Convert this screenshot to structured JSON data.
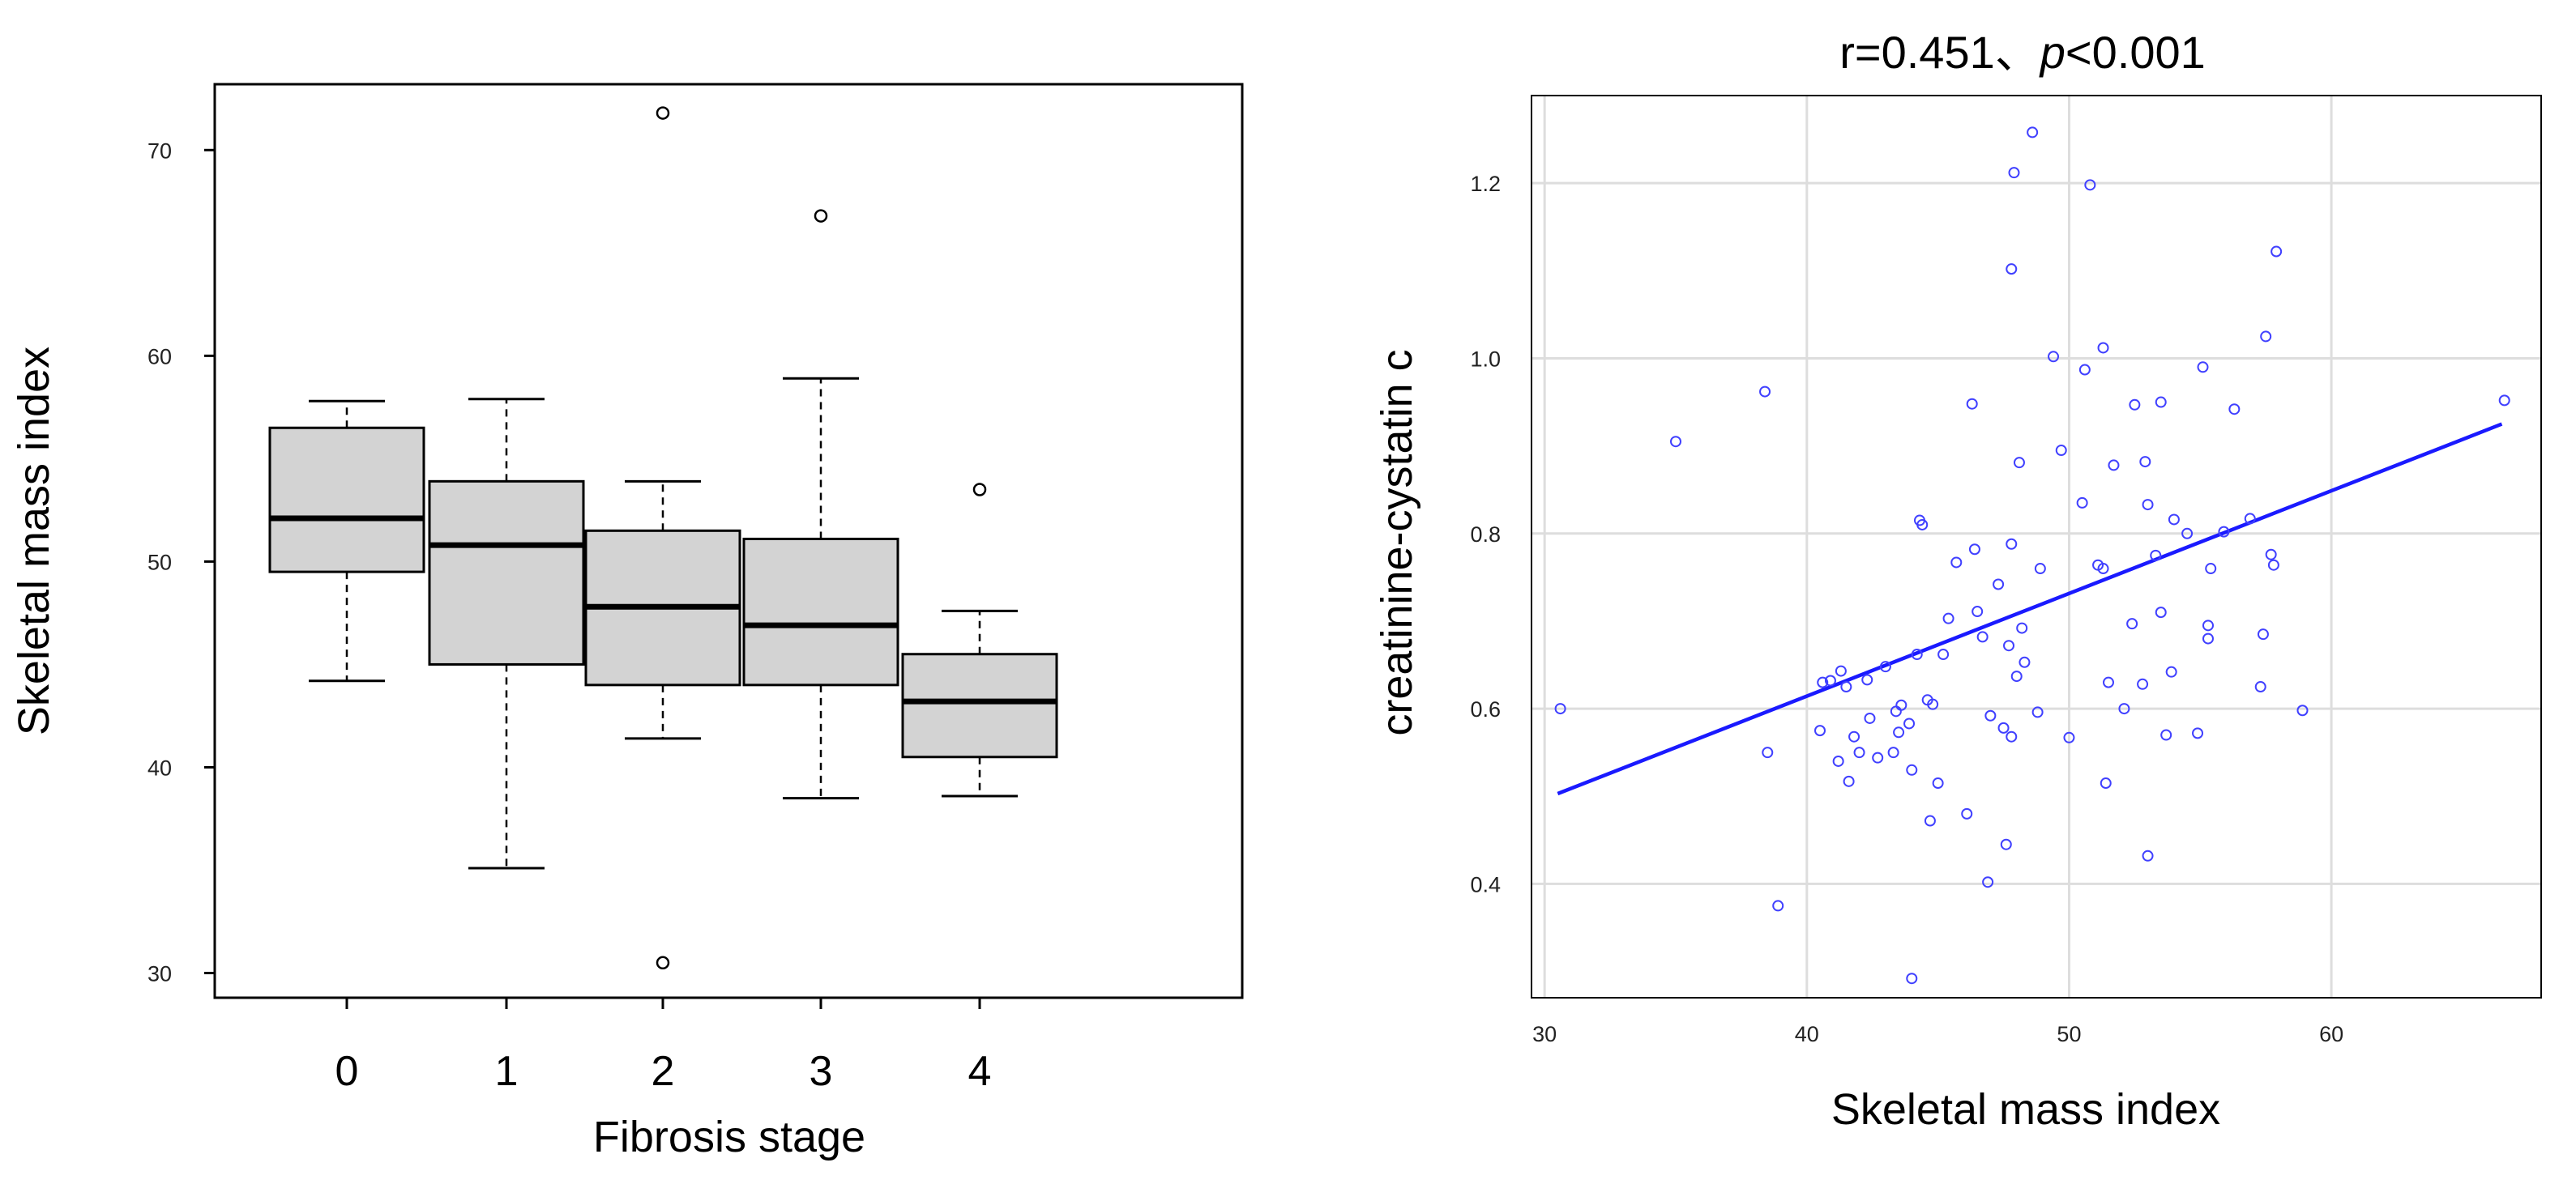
{
  "chart_data": [
    {
      "type": "box",
      "title": "",
      "xlabel": "Fibrosis stage",
      "ylabel": "Skeletal mass index",
      "categories": [
        "0",
        "1",
        "2",
        "3",
        "4"
      ],
      "ylim": [
        28.8,
        73.2
      ],
      "yticks": [
        30,
        40,
        50,
        60,
        70
      ],
      "grid": false,
      "fill_color": "#d3d3d3",
      "boxes": [
        {
          "category": "0",
          "whisker_low": 44.2,
          "q1": 49.5,
          "median": 52.1,
          "q3": 56.5,
          "whisker_high": 57.8,
          "outliers": []
        },
        {
          "category": "1",
          "whisker_low": 35.1,
          "q1": 45.0,
          "median": 50.8,
          "q3": 53.9,
          "whisker_high": 57.9,
          "outliers": []
        },
        {
          "category": "2",
          "whisker_low": 41.4,
          "q1": 44.0,
          "median": 47.8,
          "q3": 51.5,
          "whisker_high": 53.9,
          "outliers": [
            71.8,
            30.5
          ]
        },
        {
          "category": "3",
          "whisker_low": 38.5,
          "q1": 44.0,
          "median": 46.9,
          "q3": 51.1,
          "whisker_high": 58.9,
          "outliers": [
            66.8
          ]
        },
        {
          "category": "4",
          "whisker_low": 38.6,
          "q1": 40.5,
          "median": 43.2,
          "q3": 45.5,
          "whisker_high": 47.6,
          "outliers": [
            53.5
          ]
        }
      ]
    },
    {
      "type": "scatter",
      "title_prefix": "r=0.451、",
      "title_italic": "p",
      "title_suffix": "<0.001",
      "xlabel": "Skeletal mass index",
      "ylabel": "creatinine-cystatin c",
      "xlim": [
        29.5,
        68
      ],
      "ylim": [
        0.27,
        1.3
      ],
      "xticks": [
        30,
        40,
        50,
        60
      ],
      "yticks": [
        0.4,
        0.6,
        0.8,
        1.0,
        1.2
      ],
      "ytick_labels": [
        "0.4",
        "0.6",
        "0.8",
        "1.0",
        "1.2"
      ],
      "grid": true,
      "point_color": "#4040ff",
      "line_color": "#1a1aff",
      "regression": {
        "x": [
          30.5,
          66.5
        ],
        "y": [
          0.503,
          0.925
        ]
      },
      "points": [
        [
          30.6,
          0.6
        ],
        [
          35.0,
          0.905
        ],
        [
          38.4,
          0.962
        ],
        [
          38.5,
          0.55
        ],
        [
          38.9,
          0.375
        ],
        [
          40.5,
          0.575
        ],
        [
          40.6,
          0.63
        ],
        [
          40.9,
          0.632
        ],
        [
          41.2,
          0.54
        ],
        [
          41.3,
          0.643
        ],
        [
          41.5,
          0.625
        ],
        [
          41.6,
          0.517
        ],
        [
          41.8,
          0.568
        ],
        [
          42.0,
          0.55
        ],
        [
          42.3,
          0.633
        ],
        [
          42.4,
          0.589
        ],
        [
          42.7,
          0.544
        ],
        [
          43.0,
          0.648
        ],
        [
          43.3,
          0.55
        ],
        [
          43.4,
          0.597
        ],
        [
          43.5,
          0.573
        ],
        [
          43.6,
          0.604
        ],
        [
          43.9,
          0.583
        ],
        [
          44.0,
          0.53
        ],
        [
          44.0,
          0.292
        ],
        [
          44.2,
          0.662
        ],
        [
          44.3,
          0.815
        ],
        [
          44.4,
          0.81
        ],
        [
          44.6,
          0.61
        ],
        [
          44.7,
          0.472
        ],
        [
          44.8,
          0.605
        ],
        [
          45.0,
          0.515
        ],
        [
          45.2,
          0.662
        ],
        [
          45.4,
          0.703
        ],
        [
          45.7,
          0.767
        ],
        [
          46.1,
          0.48
        ],
        [
          46.3,
          0.948
        ],
        [
          46.4,
          0.782
        ],
        [
          46.5,
          0.711
        ],
        [
          46.7,
          0.682
        ],
        [
          46.9,
          0.402
        ],
        [
          47.0,
          0.592
        ],
        [
          47.3,
          0.742
        ],
        [
          47.5,
          0.578
        ],
        [
          47.6,
          0.445
        ],
        [
          47.7,
          0.672
        ],
        [
          47.8,
          0.568
        ],
        [
          47.8,
          0.788
        ],
        [
          47.8,
          1.102
        ],
        [
          47.9,
          1.212
        ],
        [
          48.0,
          0.637
        ],
        [
          48.1,
          0.881
        ],
        [
          48.2,
          0.692
        ],
        [
          48.3,
          0.653
        ],
        [
          48.6,
          1.258
        ],
        [
          48.8,
          0.596
        ],
        [
          48.9,
          0.76
        ],
        [
          49.4,
          1.002
        ],
        [
          49.7,
          0.895
        ],
        [
          50.0,
          0.567
        ],
        [
          50.5,
          0.835
        ],
        [
          50.6,
          0.987
        ],
        [
          50.8,
          1.198
        ],
        [
          51.1,
          0.764
        ],
        [
          51.3,
          0.76
        ],
        [
          51.3,
          1.012
        ],
        [
          51.4,
          0.515
        ],
        [
          51.5,
          0.63
        ],
        [
          51.7,
          0.878
        ],
        [
          52.1,
          0.6
        ],
        [
          52.4,
          0.697
        ],
        [
          52.5,
          0.947
        ],
        [
          52.8,
          0.628
        ],
        [
          52.9,
          0.882
        ],
        [
          53.0,
          0.432
        ],
        [
          53.0,
          0.833
        ],
        [
          53.3,
          0.775
        ],
        [
          53.5,
          0.95
        ],
        [
          53.5,
          0.71
        ],
        [
          53.7,
          0.57
        ],
        [
          53.9,
          0.642
        ],
        [
          54.0,
          0.816
        ],
        [
          54.5,
          0.8
        ],
        [
          54.9,
          0.572
        ],
        [
          55.1,
          0.99
        ],
        [
          55.3,
          0.68
        ],
        [
          55.3,
          0.695
        ],
        [
          55.4,
          0.76
        ],
        [
          55.9,
          0.802
        ],
        [
          56.3,
          0.942
        ],
        [
          56.9,
          0.817
        ],
        [
          57.3,
          0.625
        ],
        [
          57.4,
          0.685
        ],
        [
          57.5,
          1.025
        ],
        [
          57.7,
          0.776
        ],
        [
          57.8,
          0.764
        ],
        [
          57.9,
          1.122
        ],
        [
          58.9,
          0.598
        ],
        [
          66.6,
          0.952
        ]
      ]
    }
  ]
}
